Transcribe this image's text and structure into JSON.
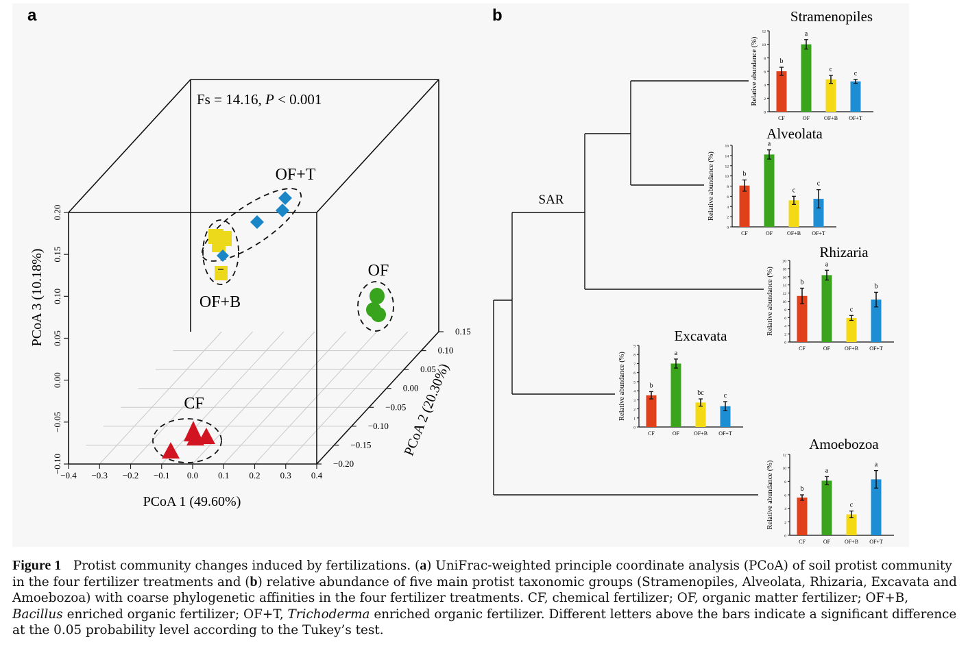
{
  "panel_labels": {
    "a": "a",
    "b": "b"
  },
  "colors": {
    "CF": "#e0401a",
    "OF": "#3aa51c",
    "OF+B": "#f4da14",
    "OF+T": "#1d8ed3",
    "CF_marker": "#d21422",
    "OF+B_marker": "#ecd91c",
    "OF+T_marker": "#1a86c5",
    "OF_marker": "#38a31d",
    "panel_bg": "#f7f7f7"
  },
  "pcoa": {
    "stat_prefix": "Fs = 14.16, ",
    "stat_p": "P",
    "stat_suffix": " < 0.001",
    "xlabel": "PCoA 1 (49.60%)",
    "ylabel": "PCoA 2 (20.30%)",
    "zlabel": "PCoA 3 (10.18%)",
    "x_ticks": [
      "−0.4",
      "−0.3",
      "−0.2",
      "−0.1",
      "0.0",
      "0.1",
      "0.2",
      "0.3",
      "0.4"
    ],
    "y_ticks": [
      "−0.20",
      "−0.15",
      "−0.10",
      "−0.05",
      "0.00",
      "0.05",
      "0.10",
      "0.15"
    ],
    "z_ticks": [
      "−0.10",
      "−0.05",
      "0.00",
      "0.05",
      "0.10",
      "0.15",
      "0.20"
    ],
    "group_labels": {
      "CF": "CF",
      "OF": "OF",
      "OF+B": "OF+B",
      "OF+T": "OF+T"
    }
  },
  "tree": {
    "sar_label": "SAR"
  },
  "chart_data": [
    {
      "type": "scatter",
      "title": "",
      "xlabel": "PCoA 1 (49.60%)",
      "ylabel": "PCoA 2 (20.30%)",
      "zlabel": "PCoA 3 (10.18%)",
      "xlim": [
        -0.4,
        0.4
      ],
      "ylim": [
        -0.2,
        0.15
      ],
      "zlim": [
        -0.1,
        0.2
      ],
      "annotation": "Fs = 14.16, P < 0.001",
      "series": [
        {
          "name": "CF",
          "marker": "triangle",
          "points": [
            [
              -0.02,
              -0.12,
              0.06
            ],
            [
              0.02,
              -0.12,
              0.065
            ],
            [
              0.0,
              -0.13,
              0.06
            ],
            [
              -0.08,
              -0.17,
              0.04
            ]
          ]
        },
        {
          "name": "OF",
          "marker": "circle",
          "points": [
            [
              0.2,
              0.05,
              0.2
            ],
            [
              0.19,
              0.04,
              0.17
            ],
            [
              0.2,
              0.035,
              0.16
            ]
          ]
        },
        {
          "name": "OF+B",
          "marker": "square",
          "points": [
            [
              -0.14,
              0.06,
              0.24
            ],
            [
              -0.13,
              0.055,
              0.24
            ],
            [
              -0.14,
              0.05,
              0.22
            ],
            [
              -0.13,
              0.045,
              0.18
            ]
          ]
        },
        {
          "name": "OF+T",
          "marker": "diamond",
          "points": [
            [
              0.0,
              0.08,
              0.27
            ],
            [
              0.05,
              0.1,
              0.3
            ],
            [
              0.05,
              0.09,
              0.28
            ],
            [
              -0.12,
              0.06,
              0.21
            ]
          ]
        }
      ]
    },
    {
      "type": "bar",
      "title": "Stramenopiles",
      "ylabel": "Relative abundance (%)",
      "ylim": [
        0,
        12
      ],
      "yticks": [
        "0",
        "2",
        "4",
        "6",
        "8",
        "10",
        "12"
      ],
      "categories": [
        "CF",
        "OF",
        "OF+B",
        "OF+T"
      ],
      "values": [
        6.0,
        10.0,
        4.8,
        4.5
      ],
      "errors": [
        0.6,
        0.7,
        0.6,
        0.3
      ],
      "letters": [
        "b",
        "a",
        "c",
        "c"
      ]
    },
    {
      "type": "bar",
      "title": "Alveolata",
      "ylabel": "Relative abundance (%)",
      "ylim": [
        0,
        16
      ],
      "yticks": [
        "0",
        "2",
        "4",
        "6",
        "8",
        "10",
        "12",
        "14",
        "16"
      ],
      "categories": [
        "CF",
        "OF",
        "OF+B",
        "OF+T"
      ],
      "values": [
        8.1,
        14.2,
        5.2,
        5.5
      ],
      "errors": [
        1.1,
        0.9,
        0.8,
        1.8
      ],
      "letters": [
        "b",
        "a",
        "c",
        "c"
      ]
    },
    {
      "type": "bar",
      "title": "Rhizaria",
      "ylabel": "Relative abundance (%)",
      "ylim": [
        0,
        20
      ],
      "yticks": [
        "0",
        "2",
        "4",
        "6",
        "8",
        "10",
        "12",
        "14",
        "16",
        "18",
        "20"
      ],
      "categories": [
        "CF",
        "OF",
        "OF+B",
        "OF+T"
      ],
      "values": [
        11.3,
        16.4,
        5.9,
        10.4
      ],
      "errors": [
        1.9,
        1.2,
        0.6,
        1.8
      ],
      "letters": [
        "b",
        "a",
        "c",
        "b"
      ]
    },
    {
      "type": "bar",
      "title": "Excavata",
      "ylabel": "Relative abundance (%)",
      "ylim": [
        0,
        9
      ],
      "yticks": [
        "0",
        "1",
        "2",
        "3",
        "4",
        "5",
        "6",
        "7",
        "8",
        "9"
      ],
      "categories": [
        "CF",
        "OF",
        "OF+B",
        "OF+T"
      ],
      "values": [
        3.5,
        7.0,
        2.7,
        2.3
      ],
      "errors": [
        0.4,
        0.5,
        0.4,
        0.5
      ],
      "letters": [
        "b",
        "a",
        "bc",
        "c"
      ]
    },
    {
      "type": "bar",
      "title": "Amoebozoa",
      "ylabel": "Relative abundance (%)",
      "ylim": [
        0,
        12
      ],
      "yticks": [
        "0",
        "2",
        "4",
        "6",
        "8",
        "10",
        "12"
      ],
      "categories": [
        "CF",
        "OF",
        "OF+B",
        "OF+T"
      ],
      "values": [
        5.6,
        8.1,
        3.1,
        8.3
      ],
      "errors": [
        0.4,
        0.6,
        0.5,
        1.3
      ],
      "letters": [
        "b",
        "a",
        "c",
        "a"
      ]
    }
  ],
  "caption": {
    "label": "Figure 1",
    "p1": "Protist community changes induced by fertilizations. (",
    "a": "a",
    "p2": ") UniFrac-weighted principle coordinate analysis (PCoA) of soil protist community in the four fertilizer treatments and (",
    "b": "b",
    "p3": ") relative abundance of five main protist taxonomic groups (Stramenopiles, Alveolata, Rhizaria, Excavata and Amoebozoa) with coarse phylogenetic affinities in the four fertilizer treatments. CF, chemical fertilizer; OF, organic matter fertilizer; OF+B, ",
    "bacillus": "Bacillus",
    "p4": " enriched organic fertilizer; OF+T, ",
    "trichoderma": "Trichoderma",
    "p5": " enriched organic fertilizer. Different letters above the bars indicate a significant difference at the 0.05 probability level according to the Tukey’s test."
  }
}
